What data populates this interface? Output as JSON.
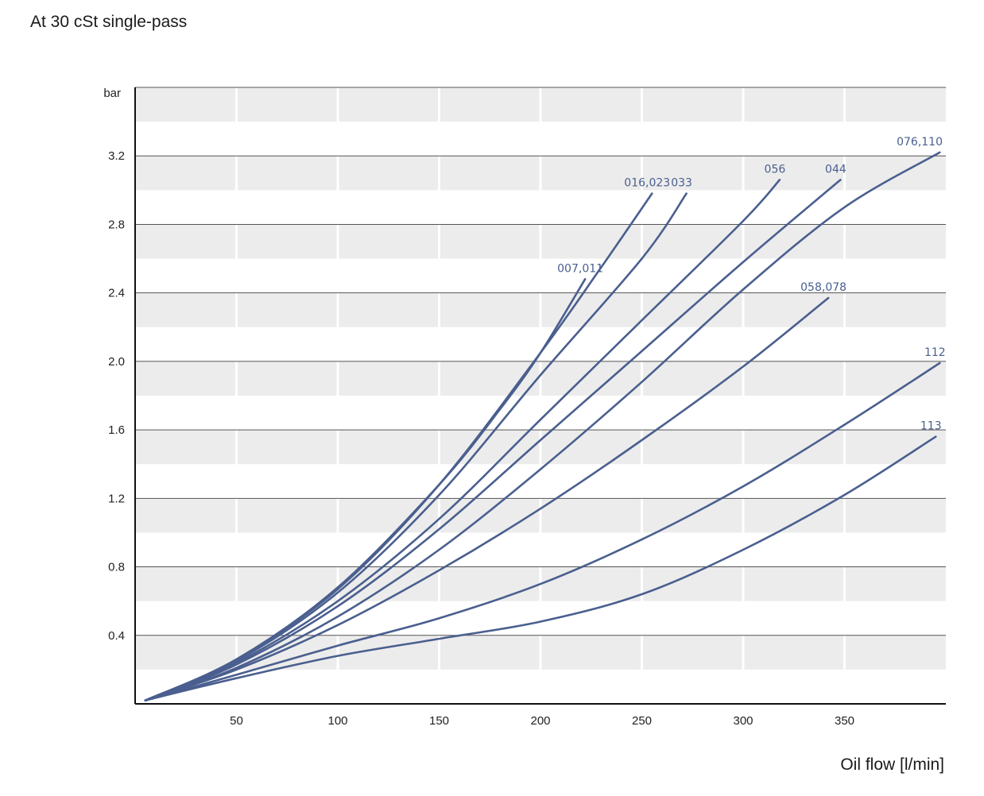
{
  "page": {
    "title": "At 30 cSt single-pass"
  },
  "chart_data": {
    "type": "line",
    "title": "At 30 cSt single-pass",
    "xlabel": "Oil flow [l/min]",
    "ylabel": "bar",
    "xlim": [
      0,
      400
    ],
    "ylim": [
      0,
      3.6
    ],
    "x_ticks": [
      50,
      100,
      150,
      200,
      250,
      300,
      350
    ],
    "y_ticks": [
      0.4,
      0.8,
      1.2,
      1.6,
      2.0,
      2.4,
      2.8,
      3.2
    ],
    "y_tick_labels": [
      "0.4",
      "0.8",
      "1.2",
      "1.6",
      "2.0",
      "2.4",
      "2.8",
      "3.2"
    ],
    "grid": true,
    "line_color": "#4a5f8f",
    "series": [
      {
        "name": "007,011",
        "points": [
          [
            5,
            0.02
          ],
          [
            50,
            0.26
          ],
          [
            100,
            0.68
          ],
          [
            150,
            1.28
          ],
          [
            180,
            1.72
          ],
          [
            200,
            2.05
          ],
          [
            222,
            2.48
          ]
        ]
      },
      {
        "name": "016,023",
        "points": [
          [
            5,
            0.02
          ],
          [
            50,
            0.26
          ],
          [
            100,
            0.67
          ],
          [
            150,
            1.28
          ],
          [
            200,
            2.05
          ],
          [
            230,
            2.55
          ],
          [
            255,
            2.98
          ]
        ]
      },
      {
        "name": "033",
        "points": [
          [
            5,
            0.02
          ],
          [
            50,
            0.25
          ],
          [
            100,
            0.65
          ],
          [
            150,
            1.22
          ],
          [
            200,
            1.92
          ],
          [
            250,
            2.6
          ],
          [
            272,
            2.98
          ]
        ]
      },
      {
        "name": "056",
        "points": [
          [
            5,
            0.02
          ],
          [
            50,
            0.24
          ],
          [
            100,
            0.6
          ],
          [
            150,
            1.08
          ],
          [
            200,
            1.66
          ],
          [
            250,
            2.24
          ],
          [
            300,
            2.82
          ],
          [
            318,
            3.06
          ]
        ]
      },
      {
        "name": "044",
        "points": [
          [
            5,
            0.02
          ],
          [
            50,
            0.23
          ],
          [
            100,
            0.57
          ],
          [
            150,
            1.02
          ],
          [
            200,
            1.54
          ],
          [
            250,
            2.06
          ],
          [
            300,
            2.58
          ],
          [
            348,
            3.06
          ]
        ]
      },
      {
        "name": "076,110",
        "points": [
          [
            5,
            0.02
          ],
          [
            50,
            0.21
          ],
          [
            100,
            0.51
          ],
          [
            150,
            0.9
          ],
          [
            200,
            1.37
          ],
          [
            250,
            1.88
          ],
          [
            300,
            2.42
          ],
          [
            350,
            2.9
          ],
          [
            397,
            3.22
          ]
        ]
      },
      {
        "name": "058,078",
        "points": [
          [
            5,
            0.02
          ],
          [
            50,
            0.2
          ],
          [
            100,
            0.46
          ],
          [
            150,
            0.78
          ],
          [
            200,
            1.14
          ],
          [
            250,
            1.54
          ],
          [
            300,
            1.97
          ],
          [
            342,
            2.37
          ]
        ]
      },
      {
        "name": "112",
        "points": [
          [
            5,
            0.02
          ],
          [
            50,
            0.17
          ],
          [
            100,
            0.34
          ],
          [
            150,
            0.5
          ],
          [
            200,
            0.7
          ],
          [
            250,
            0.96
          ],
          [
            300,
            1.27
          ],
          [
            350,
            1.63
          ],
          [
            397,
            1.99
          ]
        ]
      },
      {
        "name": "113",
        "points": [
          [
            5,
            0.02
          ],
          [
            50,
            0.15
          ],
          [
            100,
            0.28
          ],
          [
            150,
            0.38
          ],
          [
            200,
            0.48
          ],
          [
            250,
            0.64
          ],
          [
            300,
            0.9
          ],
          [
            350,
            1.22
          ],
          [
            395,
            1.56
          ]
        ]
      }
    ]
  }
}
